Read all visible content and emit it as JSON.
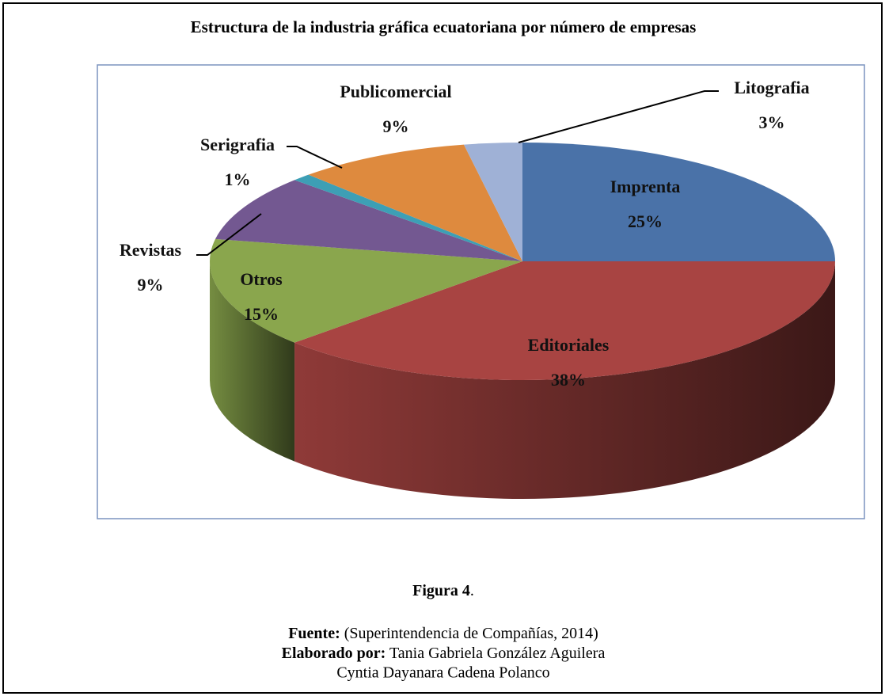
{
  "chart_data": {
    "type": "pie3d",
    "title": "Estructura de la industria gráfica ecuatoriana por número de empresas",
    "categories": [
      "Imprenta",
      "Editoriales",
      "Otros",
      "Revistas",
      "Serigrafia",
      "Publicomercial",
      "Litografia"
    ],
    "values": [
      25,
      38,
      15,
      9,
      1,
      9,
      3
    ],
    "value_labels": [
      "25%",
      "38%",
      "15%",
      "9%",
      "1%",
      "9%",
      "3%"
    ],
    "colors": [
      "#4a72a8",
      "#a84442",
      "#8aa64d",
      "#735891",
      "#3d9fb5",
      "#de8a3e",
      "#9fb1d6"
    ]
  },
  "caption": {
    "figure": "Figura 4",
    "figure_end": ".",
    "source_label": "Fuente:",
    "source": "(Superintendencia de Compañías, 2014)",
    "author_label": "Elaborado por:",
    "author_1": "Tania Gabriela González Aguilera",
    "author_2": "Cyntia Dayanara Cadena Polanco"
  }
}
